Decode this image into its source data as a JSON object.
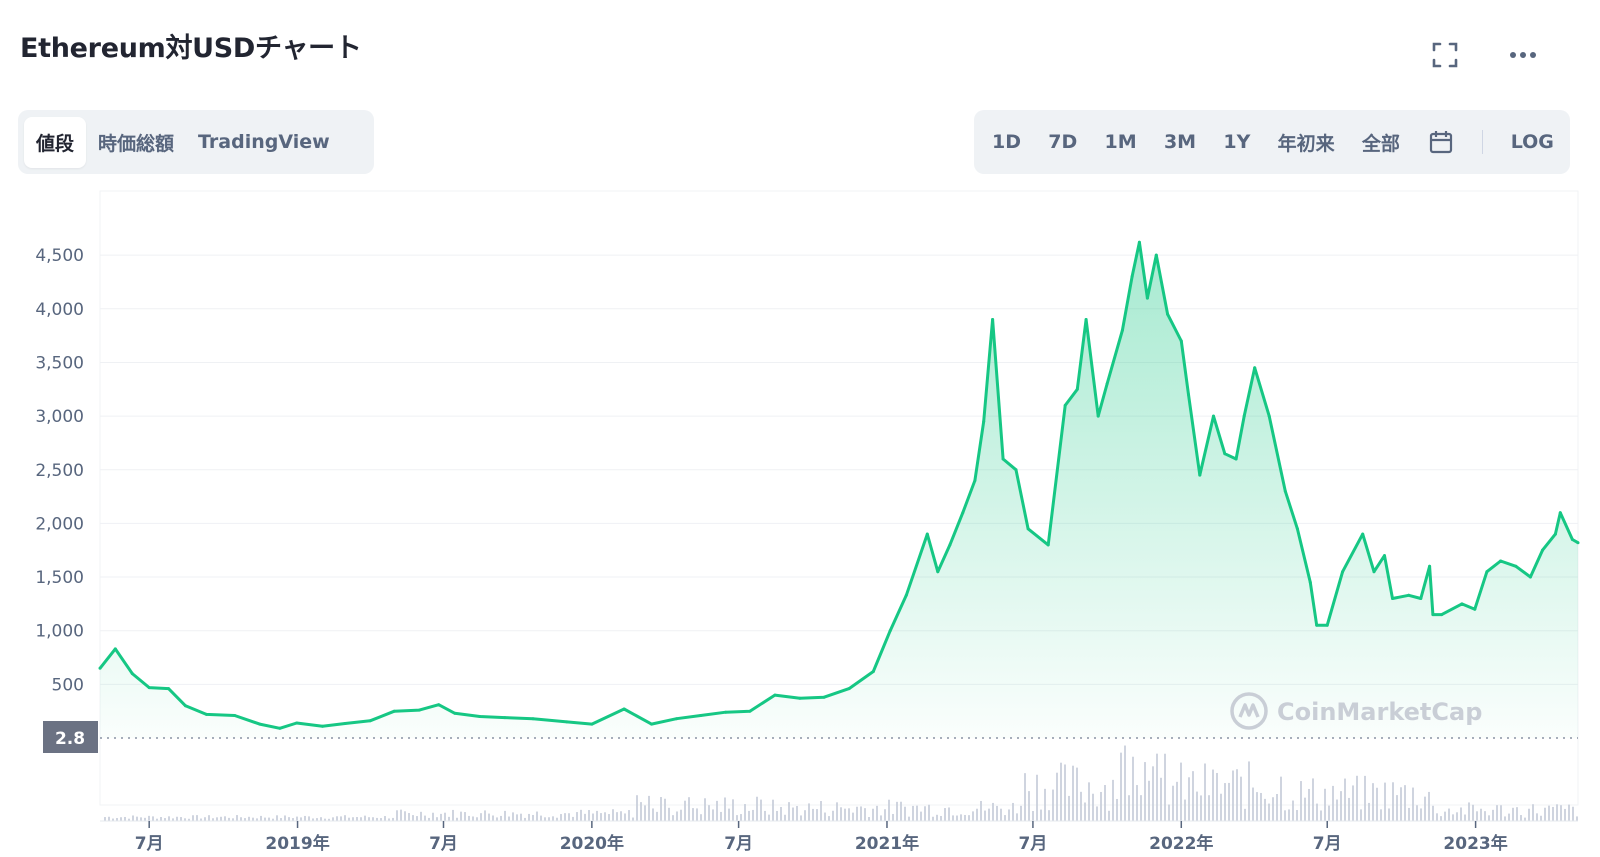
{
  "page": {
    "title": "Ethereum対USDチャート"
  },
  "header_icons": {
    "fullscreen": "fullscreen-icon",
    "more": "more-dots-icon"
  },
  "view_tabs": [
    {
      "label": "値段",
      "active": true
    },
    {
      "label": "時価総額",
      "active": false
    },
    {
      "label": "TradingView",
      "active": false
    }
  ],
  "ranges": {
    "items": [
      "1D",
      "7D",
      "1M",
      "3M",
      "1Y",
      "年初来",
      "全部"
    ],
    "calendar_icon": "calendar-icon",
    "log_label": "LOG"
  },
  "colors": {
    "line": "#16c784",
    "fill_top": "#16c784",
    "axis_text": "#58667e",
    "volume": "#c7ccd9",
    "price_tag_bg": "#6b7283"
  },
  "chart_data": {
    "type": "area",
    "y_ticks": [
      "500",
      "1,000",
      "1,500",
      "2,000",
      "2,500",
      "3,000",
      "3,500",
      "4,000",
      "4,500"
    ],
    "ylim": [
      0,
      4900
    ],
    "x_ticks": [
      "7月",
      "2019年",
      "7月",
      "2020年",
      "7月",
      "2021年",
      "7月",
      "2022年",
      "7月",
      "2023年"
    ],
    "current_label": "2.8",
    "grid": true,
    "watermark": "CoinMarketCap",
    "series": [
      {
        "dates": [
          "2018-05-01",
          "2018-05-20",
          "2018-06-10",
          "2018-07-01",
          "2018-07-25",
          "2018-08-15",
          "2018-09-10",
          "2018-10-15",
          "2018-11-15",
          "2018-12-10",
          "2018-12-31",
          "2019-02-01",
          "2019-03-01",
          "2019-04-01",
          "2019-05-01",
          "2019-06-01",
          "2019-06-25",
          "2019-07-15",
          "2019-08-15",
          "2019-09-15",
          "2019-10-20",
          "2019-12-01",
          "2020-01-01",
          "2020-02-10",
          "2020-03-15",
          "2020-04-15",
          "2020-05-15",
          "2020-06-15",
          "2020-07-15",
          "2020-08-15",
          "2020-09-15",
          "2020-10-15",
          "2020-11-15",
          "2020-12-15",
          "2021-01-05",
          "2021-01-25",
          "2021-02-20",
          "2021-03-05",
          "2021-03-20",
          "2021-04-05",
          "2021-04-20",
          "2021-05-01",
          "2021-05-12",
          "2021-05-25",
          "2021-06-10",
          "2021-06-25",
          "2021-07-20",
          "2021-08-10",
          "2021-08-25",
          "2021-09-05",
          "2021-09-20",
          "2021-10-01",
          "2021-10-20",
          "2021-11-01",
          "2021-11-10",
          "2021-11-20",
          "2021-12-01",
          "2021-12-15",
          "2022-01-01",
          "2022-01-10",
          "2022-01-24",
          "2022-02-10",
          "2022-02-24",
          "2022-03-10",
          "2022-03-20",
          "2022-04-02",
          "2022-04-20",
          "2022-05-10",
          "2022-05-25",
          "2022-06-10",
          "2022-06-18",
          "2022-07-01",
          "2022-07-20",
          "2022-08-14",
          "2022-08-28",
          "2022-09-10",
          "2022-09-20",
          "2022-10-10",
          "2022-10-25",
          "2022-11-05",
          "2022-11-09",
          "2022-11-20",
          "2022-12-15",
          "2022-12-31",
          "2023-01-15",
          "2023-02-01",
          "2023-02-20",
          "2023-03-10",
          "2023-03-25",
          "2023-04-10",
          "2023-04-16",
          "2023-05-01",
          "2023-05-08"
        ],
        "values": [
          650,
          830,
          600,
          470,
          460,
          300,
          220,
          210,
          130,
          90,
          140,
          110,
          135,
          160,
          250,
          260,
          310,
          230,
          200,
          190,
          180,
          150,
          130,
          270,
          130,
          180,
          210,
          240,
          250,
          400,
          370,
          380,
          460,
          620,
          1000,
          1330,
          1900,
          1550,
          1800,
          2100,
          2400,
          2950,
          3900,
          2600,
          2500,
          1950,
          1800,
          3100,
          3250,
          3900,
          3000,
          3300,
          3800,
          4300,
          4620,
          4100,
          4500,
          3950,
          3700,
          3200,
          2450,
          3000,
          2650,
          2600,
          3000,
          3450,
          3000,
          2300,
          1950,
          1450,
          1050,
          1050,
          1550,
          1900,
          1550,
          1700,
          1300,
          1330,
          1300,
          1600,
          1150,
          1150,
          1250,
          1200,
          1550,
          1650,
          1600,
          1500,
          1750,
          1900,
          2100,
          1850,
          1820
        ]
      }
    ],
    "volume": {
      "note": "volume bars",
      "type": "bar"
    }
  }
}
